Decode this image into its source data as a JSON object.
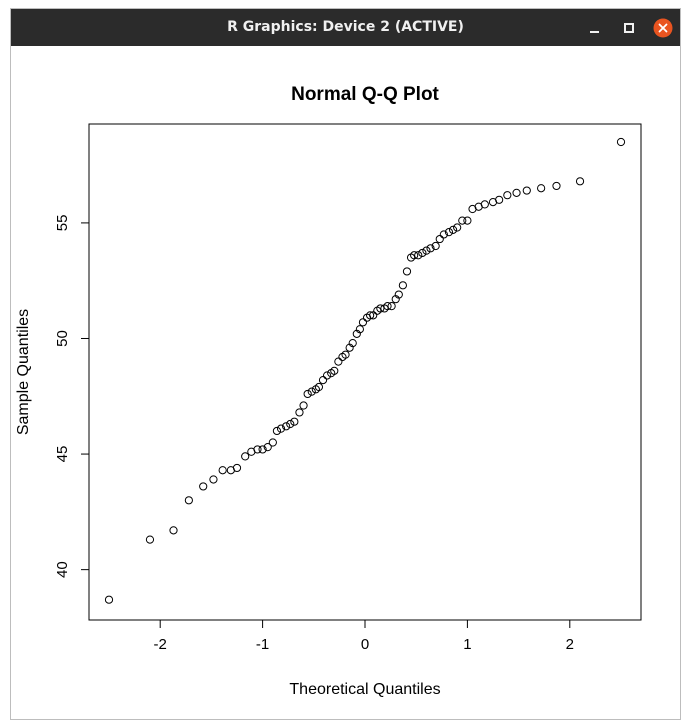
{
  "window": {
    "title": "R Graphics: Device 2 (ACTIVE)",
    "icons": {
      "minimize": "minimize-icon",
      "maximize": "maximize-icon",
      "close": "close-icon"
    },
    "colors": {
      "titlebar": "#2b2b2b",
      "close_button": "#e95420"
    }
  },
  "chart_data": {
    "type": "scatter",
    "title": "Normal Q-Q Plot",
    "xlabel": "Theoretical Quantiles",
    "ylabel": "Sample Quantiles",
    "xlim": [
      -2.5,
      2.5
    ],
    "ylim": [
      38.6,
      58.5
    ],
    "xticks": [
      -2,
      -1,
      0,
      1,
      2
    ],
    "xtick_labels": [
      "-2",
      "-1",
      "0",
      "1",
      "2"
    ],
    "yticks": [
      40,
      45,
      50,
      55
    ],
    "ytick_labels": [
      "40",
      "45",
      "50",
      "55"
    ],
    "grid": false,
    "marker": "open-circle",
    "x": [
      -2.5,
      -2.1,
      -1.87,
      -1.72,
      -1.58,
      -1.48,
      -1.39,
      -1.31,
      -1.25,
      -1.17,
      -1.11,
      -1.05,
      -1.0,
      -0.95,
      -0.9,
      -0.86,
      -0.82,
      -0.77,
      -0.73,
      -0.69,
      -0.64,
      -0.6,
      -0.56,
      -0.52,
      -0.48,
      -0.45,
      -0.41,
      -0.37,
      -0.33,
      -0.3,
      -0.26,
      -0.22,
      -0.19,
      -0.15,
      -0.12,
      -0.08,
      -0.05,
      -0.02,
      0.02,
      0.05,
      0.08,
      0.12,
      0.15,
      0.19,
      0.22,
      0.26,
      0.3,
      0.33,
      0.37,
      0.41,
      0.45,
      0.48,
      0.52,
      0.56,
      0.6,
      0.64,
      0.69,
      0.73,
      0.77,
      0.82,
      0.86,
      0.9,
      0.95,
      1.0,
      1.05,
      1.11,
      1.17,
      1.25,
      1.31,
      1.39,
      1.48,
      1.58,
      1.72,
      1.87,
      2.1,
      2.5
    ],
    "y": [
      38.7,
      41.3,
      41.7,
      43.0,
      43.6,
      43.9,
      44.3,
      44.3,
      44.4,
      44.9,
      45.1,
      45.2,
      45.2,
      45.3,
      45.5,
      46.0,
      46.1,
      46.2,
      46.3,
      46.4,
      46.8,
      47.1,
      47.6,
      47.7,
      47.8,
      47.9,
      48.2,
      48.4,
      48.5,
      48.6,
      49.0,
      49.2,
      49.3,
      49.6,
      49.8,
      50.2,
      50.4,
      50.7,
      50.9,
      51.0,
      51.0,
      51.2,
      51.3,
      51.3,
      51.4,
      51.4,
      51.7,
      51.9,
      52.3,
      52.9,
      53.5,
      53.6,
      53.6,
      53.7,
      53.8,
      53.9,
      54.0,
      54.3,
      54.5,
      54.6,
      54.7,
      54.8,
      55.1,
      55.1,
      55.6,
      55.7,
      55.8,
      55.9,
      56.0,
      56.2,
      56.3,
      56.4,
      56.5,
      56.6,
      56.8,
      58.5
    ]
  }
}
